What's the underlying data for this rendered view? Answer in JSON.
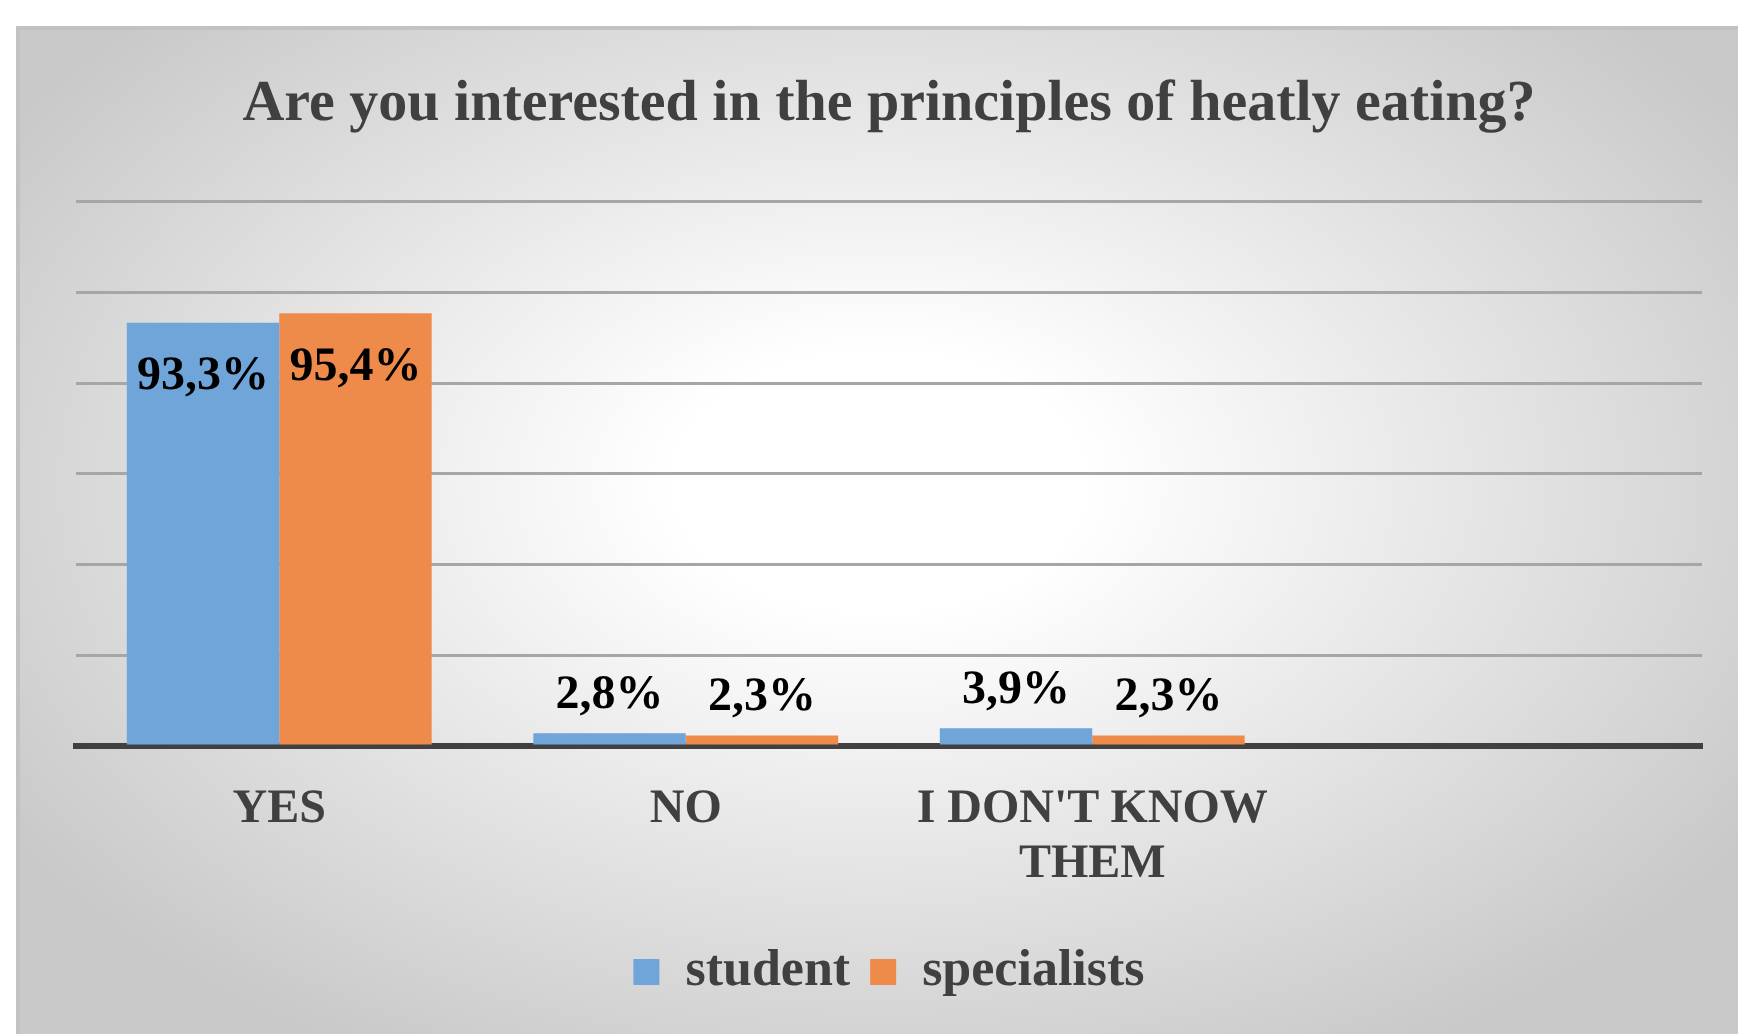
{
  "chart_data": {
    "type": "bar",
    "title": "Are you interested in the principles of heatly eating?",
    "categories": [
      "YES",
      "NO",
      "I DON'T KNOW THEM",
      null
    ],
    "series": [
      {
        "name": "student",
        "color": "#6fa5d9",
        "values": [
          93.3,
          2.8,
          3.9,
          null
        ],
        "value_labels": [
          "93,3%",
          "2,8%",
          "3,9%",
          null
        ]
      },
      {
        "name": "specialists",
        "color": "#ef8b4a",
        "values": [
          95.4,
          2.3,
          2.3,
          null
        ],
        "value_labels": [
          "95,4%",
          "2,3%",
          "2,3%",
          null
        ]
      }
    ],
    "ylim": [
      0,
      120
    ],
    "yticks": [
      {
        "value": 0,
        "label": null
      },
      {
        "value": 20,
        "label": null
      },
      {
        "value": 40,
        "label": null
      },
      {
        "value": 60,
        "label": null
      },
      {
        "value": 80,
        "label": null
      },
      {
        "value": 100,
        "label": null
      },
      {
        "value": 120,
        "label": null
      }
    ],
    "grid": "y",
    "legend": "bottom",
    "tick_labels": "x"
  }
}
